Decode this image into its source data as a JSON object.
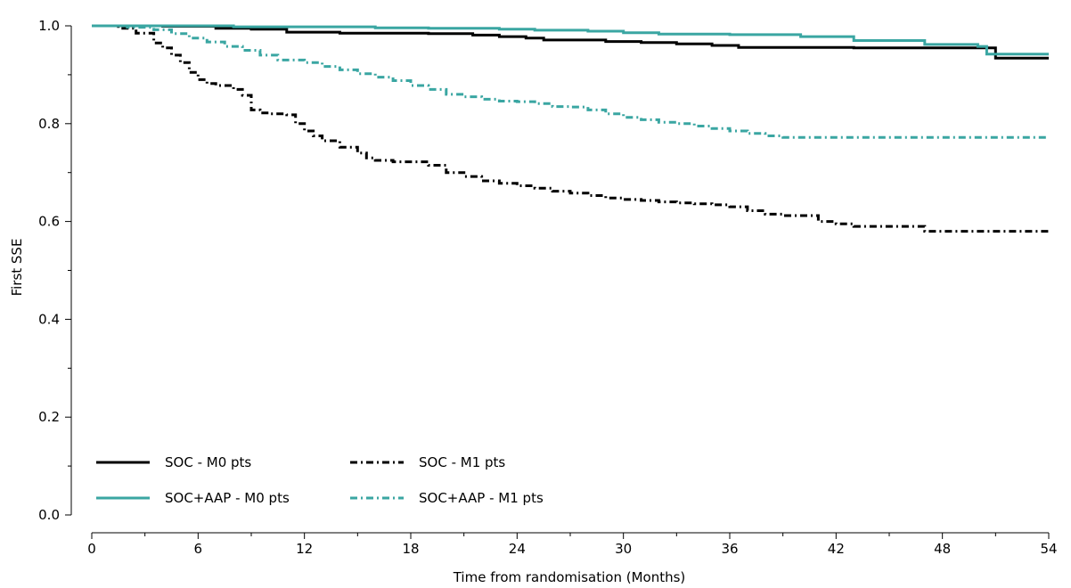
{
  "chart_data": {
    "type": "line",
    "xlabel": "Time from randomisation (Months)",
    "ylabel": "First SSE",
    "xlim": [
      0,
      54
    ],
    "ylim": [
      0,
      1
    ],
    "x_ticks": [
      0,
      6,
      12,
      18,
      24,
      30,
      36,
      42,
      48,
      54
    ],
    "x_minor_ticks": [
      3,
      9,
      15,
      21,
      27,
      33,
      39,
      45,
      51
    ],
    "y_ticks": [
      "0.0",
      "0.2",
      "0.4",
      "0.6",
      "0.8",
      "1.0"
    ],
    "grid": false,
    "legend_position": "bottom-left",
    "series": [
      {
        "name": "SOC - M0 pts",
        "color": "#000000",
        "style": "solid",
        "points": [
          [
            0,
            1.0
          ],
          [
            4,
            0.999
          ],
          [
            7,
            0.995
          ],
          [
            9,
            0.993
          ],
          [
            11,
            0.987
          ],
          [
            14,
            0.985
          ],
          [
            19,
            0.984
          ],
          [
            21.5,
            0.981
          ],
          [
            23,
            0.978
          ],
          [
            24.5,
            0.975
          ],
          [
            25.5,
            0.971
          ],
          [
            29,
            0.968
          ],
          [
            31,
            0.966
          ],
          [
            33,
            0.963
          ],
          [
            35,
            0.96
          ],
          [
            36.5,
            0.956
          ],
          [
            43,
            0.955
          ],
          [
            48,
            0.955
          ],
          [
            50,
            0.955
          ],
          [
            51,
            0.955
          ],
          [
            51,
            0.934
          ],
          [
            54,
            0.934
          ]
        ]
      },
      {
        "name": "SOC+AAP - M0 pts",
        "color": "#3aa6a2",
        "style": "solid",
        "points": [
          [
            0,
            1.0
          ],
          [
            8,
            0.998
          ],
          [
            16,
            0.996
          ],
          [
            19,
            0.995
          ],
          [
            23,
            0.993
          ],
          [
            25,
            0.991
          ],
          [
            28,
            0.989
          ],
          [
            30,
            0.986
          ],
          [
            32,
            0.983
          ],
          [
            36,
            0.982
          ],
          [
            40,
            0.978
          ],
          [
            43,
            0.97
          ],
          [
            47,
            0.962
          ],
          [
            50,
            0.958
          ],
          [
            50.5,
            0.958
          ],
          [
            50.5,
            0.942
          ],
          [
            54,
            0.942
          ]
        ]
      },
      {
        "name": "SOC - M1 pts",
        "color": "#000000",
        "style": "dashdot",
        "points": [
          [
            0,
            1.0
          ],
          [
            1.5,
            0.995
          ],
          [
            2.5,
            0.985
          ],
          [
            3.5,
            0.965
          ],
          [
            4,
            0.955
          ],
          [
            4.5,
            0.94
          ],
          [
            5,
            0.925
          ],
          [
            5.5,
            0.905
          ],
          [
            6,
            0.89
          ],
          [
            6.5,
            0.882
          ],
          [
            7,
            0.878
          ],
          [
            8,
            0.87
          ],
          [
            8.5,
            0.858
          ],
          [
            9,
            0.828
          ],
          [
            9.5,
            0.822
          ],
          [
            10,
            0.82
          ],
          [
            11,
            0.818
          ],
          [
            11.5,
            0.8
          ],
          [
            12,
            0.785
          ],
          [
            12.5,
            0.775
          ],
          [
            13,
            0.765
          ],
          [
            14,
            0.752
          ],
          [
            15,
            0.74
          ],
          [
            15.5,
            0.73
          ],
          [
            16,
            0.725
          ],
          [
            17,
            0.722
          ],
          [
            18,
            0.722
          ],
          [
            19,
            0.715
          ],
          [
            20,
            0.7
          ],
          [
            21,
            0.692
          ],
          [
            22,
            0.683
          ],
          [
            23,
            0.678
          ],
          [
            24,
            0.673
          ],
          [
            25,
            0.668
          ],
          [
            26,
            0.662
          ],
          [
            27,
            0.658
          ],
          [
            28,
            0.653
          ],
          [
            29,
            0.648
          ],
          [
            30,
            0.645
          ],
          [
            31,
            0.643
          ],
          [
            32,
            0.64
          ],
          [
            33,
            0.638
          ],
          [
            34,
            0.636
          ],
          [
            35,
            0.634
          ],
          [
            36,
            0.63
          ],
          [
            37,
            0.622
          ],
          [
            38,
            0.615
          ],
          [
            39,
            0.612
          ],
          [
            40,
            0.612
          ],
          [
            41,
            0.6
          ],
          [
            42,
            0.595
          ],
          [
            43,
            0.59
          ],
          [
            45,
            0.59
          ],
          [
            46,
            0.59
          ],
          [
            47,
            0.58
          ],
          [
            50,
            0.58
          ],
          [
            54,
            0.58
          ]
        ]
      },
      {
        "name": "SOC+AAP - M1 pts",
        "color": "#3aa6a2",
        "style": "dashdot",
        "points": [
          [
            0,
            1.0
          ],
          [
            2,
            0.997
          ],
          [
            3.5,
            0.992
          ],
          [
            4.5,
            0.984
          ],
          [
            5.5,
            0.975
          ],
          [
            6.5,
            0.967
          ],
          [
            7.5,
            0.958
          ],
          [
            8.5,
            0.95
          ],
          [
            9.5,
            0.94
          ],
          [
            10.5,
            0.93
          ],
          [
            12,
            0.925
          ],
          [
            13,
            0.917
          ],
          [
            14,
            0.91
          ],
          [
            15,
            0.902
          ],
          [
            16,
            0.895
          ],
          [
            17,
            0.888
          ],
          [
            18,
            0.878
          ],
          [
            19,
            0.87
          ],
          [
            20,
            0.86
          ],
          [
            21,
            0.855
          ],
          [
            22,
            0.85
          ],
          [
            23,
            0.846
          ],
          [
            24,
            0.845
          ],
          [
            25,
            0.841
          ],
          [
            26,
            0.835
          ],
          [
            27,
            0.834
          ],
          [
            28,
            0.828
          ],
          [
            29,
            0.82
          ],
          [
            30,
            0.813
          ],
          [
            31,
            0.808
          ],
          [
            32,
            0.803
          ],
          [
            33,
            0.8
          ],
          [
            34,
            0.795
          ],
          [
            35,
            0.79
          ],
          [
            36,
            0.785
          ],
          [
            37,
            0.78
          ],
          [
            38,
            0.775
          ],
          [
            39,
            0.772
          ],
          [
            42,
            0.772
          ],
          [
            46,
            0.772
          ],
          [
            50,
            0.772
          ],
          [
            54,
            0.772
          ]
        ]
      }
    ]
  }
}
